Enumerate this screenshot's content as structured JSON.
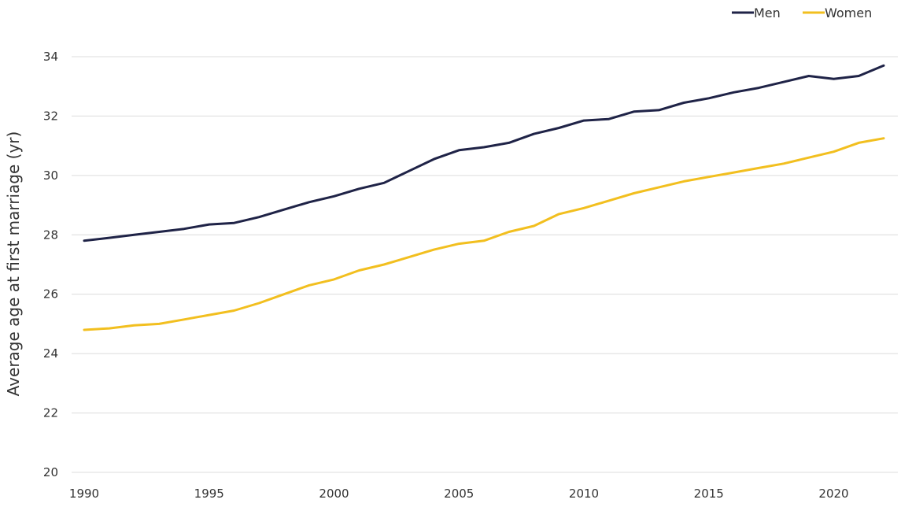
{
  "chart_data": {
    "type": "line",
    "title": "",
    "xlabel": "",
    "ylabel": "Average age at first marriage (yr)",
    "x": [
      1990,
      1991,
      1992,
      1993,
      1994,
      1995,
      1996,
      1997,
      1998,
      1999,
      2000,
      2001,
      2002,
      2003,
      2004,
      2005,
      2006,
      2007,
      2008,
      2009,
      2010,
      2011,
      2012,
      2013,
      2014,
      2015,
      2016,
      2017,
      2018,
      2019,
      2020,
      2021,
      2022
    ],
    "xticks": [
      1990,
      1995,
      2000,
      2005,
      2010,
      2015,
      2020
    ],
    "yticks": [
      20,
      22,
      24,
      26,
      28,
      30,
      32,
      34
    ],
    "xlim": [
      1990,
      2022
    ],
    "ylim": [
      20,
      34
    ],
    "grid": "horizontal",
    "legend_position": "top-right",
    "series": [
      {
        "name": "Men",
        "color": "#1f2347",
        "values": [
          27.8,
          27.9,
          28.0,
          28.1,
          28.2,
          28.35,
          28.4,
          28.6,
          28.85,
          29.1,
          29.3,
          29.55,
          29.75,
          30.15,
          30.55,
          30.85,
          30.95,
          31.1,
          31.4,
          31.6,
          31.85,
          31.9,
          32.15,
          32.2,
          32.45,
          32.6,
          32.8,
          32.95,
          33.15,
          33.35,
          33.25,
          33.35,
          33.7
        ]
      },
      {
        "name": "Women",
        "color": "#f2bf1f",
        "values": [
          24.8,
          24.85,
          24.95,
          25.0,
          25.15,
          25.3,
          25.45,
          25.7,
          26.0,
          26.3,
          26.5,
          26.8,
          27.0,
          27.25,
          27.5,
          27.7,
          27.8,
          28.1,
          28.3,
          28.7,
          28.9,
          29.15,
          29.4,
          29.6,
          29.8,
          29.95,
          30.1,
          30.25,
          30.4,
          30.6,
          30.8,
          31.1,
          31.25
        ]
      }
    ]
  }
}
